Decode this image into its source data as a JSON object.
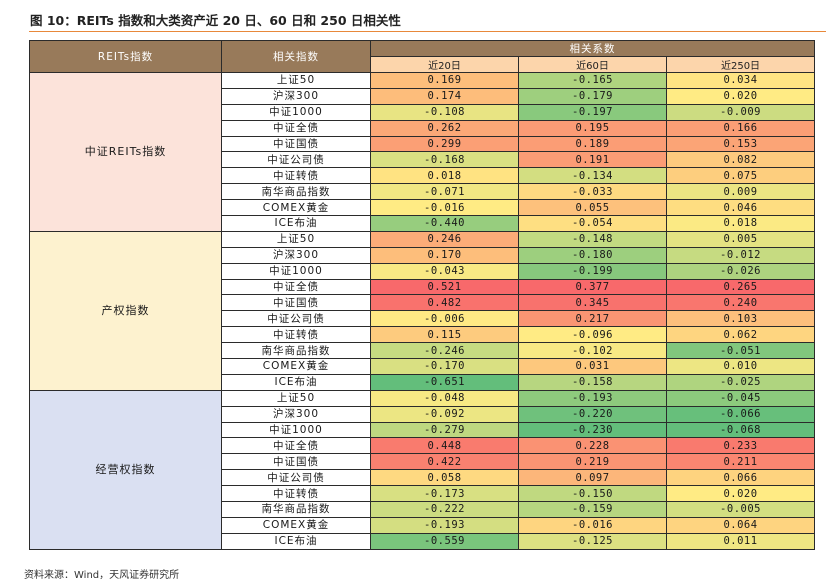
{
  "title": "图 10：REITs 指数和大类资产近 20 日、60 日和 250 日相关性",
  "table": {
    "header_index": "REITs指数",
    "header_asset": "相关指数",
    "header_coef": "相关系数",
    "periods": [
      "近20日",
      "近60日",
      "近250日"
    ],
    "groups": [
      {
        "name": "中证REITs指数",
        "bg": "#fce3da",
        "rows": [
          {
            "asset": "上证50",
            "values": [
              "0.169",
              "-0.165",
              "0.034"
            ]
          },
          {
            "asset": "沪深300",
            "values": [
              "0.174",
              "-0.179",
              "0.020"
            ]
          },
          {
            "asset": "中证1000",
            "values": [
              "-0.108",
              "-0.197",
              "-0.009"
            ]
          },
          {
            "asset": "中证全债",
            "values": [
              "0.262",
              "0.195",
              "0.166"
            ]
          },
          {
            "asset": "中证国债",
            "values": [
              "0.299",
              "0.189",
              "0.153"
            ]
          },
          {
            "asset": "中证公司债",
            "values": [
              "-0.168",
              "0.191",
              "0.082"
            ]
          },
          {
            "asset": "中证转债",
            "values": [
              "0.018",
              "-0.134",
              "0.075"
            ]
          },
          {
            "asset": "南华商品指数",
            "values": [
              "-0.071",
              "-0.033",
              "0.009"
            ]
          },
          {
            "asset": "COMEX黄金",
            "values": [
              "-0.016",
              "0.055",
              "0.046"
            ]
          },
          {
            "asset": "ICE布油",
            "values": [
              "-0.440",
              "-0.054",
              "0.018"
            ]
          }
        ]
      },
      {
        "name": "产权指数",
        "bg": "#fdf2cf",
        "rows": [
          {
            "asset": "上证50",
            "values": [
              "0.246",
              "-0.148",
              "0.005"
            ]
          },
          {
            "asset": "沪深300",
            "values": [
              "0.170",
              "-0.180",
              "-0.012"
            ]
          },
          {
            "asset": "中证1000",
            "values": [
              "-0.043",
              "-0.199",
              "-0.026"
            ]
          },
          {
            "asset": "中证全债",
            "values": [
              "0.521",
              "0.377",
              "0.265"
            ]
          },
          {
            "asset": "中证国债",
            "values": [
              "0.482",
              "0.345",
              "0.240"
            ]
          },
          {
            "asset": "中证公司债",
            "values": [
              "-0.006",
              "0.217",
              "0.103"
            ]
          },
          {
            "asset": "中证转债",
            "values": [
              "0.115",
              "-0.096",
              "0.062"
            ]
          },
          {
            "asset": "南华商品指数",
            "values": [
              "-0.246",
              "-0.102",
              "-0.051"
            ]
          },
          {
            "asset": "COMEX黄金",
            "values": [
              "-0.170",
              "0.031",
              "0.010"
            ]
          },
          {
            "asset": "ICE布油",
            "values": [
              "-0.651",
              "-0.158",
              "-0.025"
            ]
          }
        ]
      },
      {
        "name": "经营权指数",
        "bg": "#dae0f2",
        "rows": [
          {
            "asset": "上证50",
            "values": [
              "-0.048",
              "-0.193",
              "-0.045"
            ]
          },
          {
            "asset": "沪深300",
            "values": [
              "-0.092",
              "-0.220",
              "-0.066"
            ]
          },
          {
            "asset": "中证1000",
            "values": [
              "-0.279",
              "-0.230",
              "-0.068"
            ]
          },
          {
            "asset": "中证全债",
            "values": [
              "0.448",
              "0.228",
              "0.233"
            ]
          },
          {
            "asset": "中证国债",
            "values": [
              "0.422",
              "0.219",
              "0.211"
            ]
          },
          {
            "asset": "中证公司债",
            "values": [
              "0.058",
              "0.097",
              "0.066"
            ]
          },
          {
            "asset": "中证转债",
            "values": [
              "-0.173",
              "-0.150",
              "0.020"
            ]
          },
          {
            "asset": "南华商品指数",
            "values": [
              "-0.222",
              "-0.159",
              "-0.005"
            ]
          },
          {
            "asset": "COMEX黄金",
            "values": [
              "-0.193",
              "-0.016",
              "0.064"
            ]
          },
          {
            "asset": "ICE布油",
            "values": [
              "-0.559",
              "-0.125",
              "0.011"
            ]
          }
        ]
      }
    ]
  },
  "source": "资料来源：Wind，天风证券研究所"
}
